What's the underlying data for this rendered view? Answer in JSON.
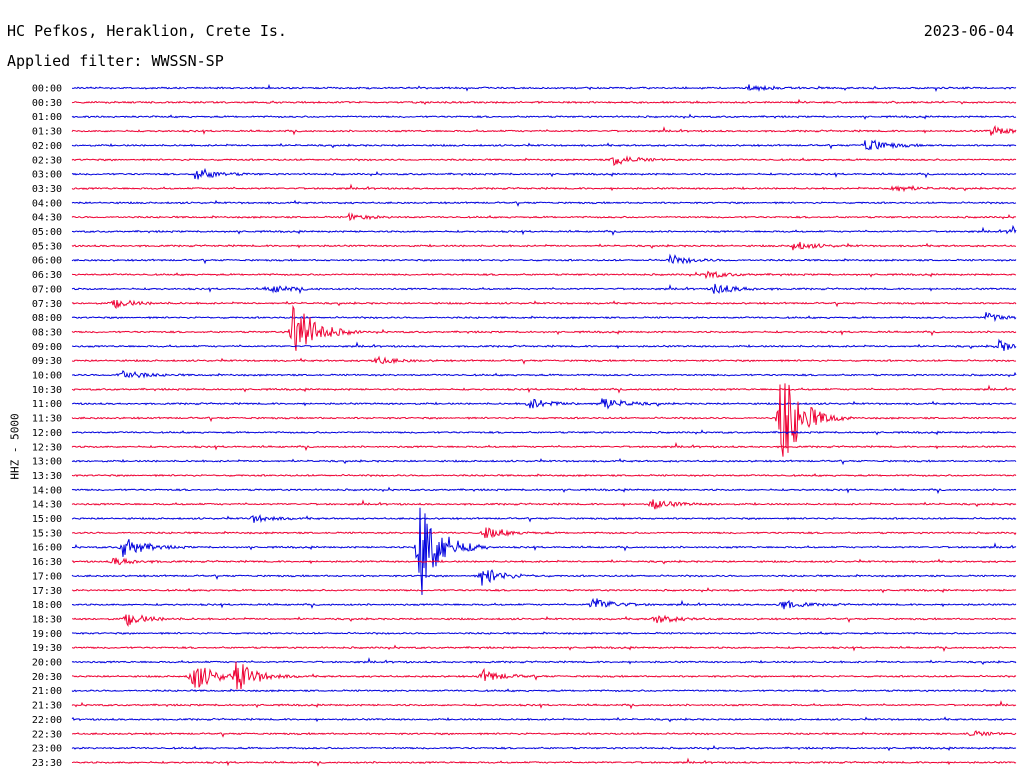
{
  "header": {
    "station": "HC Pefkos, Heraklion, Crete Is.",
    "date": "2023-06-04",
    "filter": "Applied filter: WWSSN-SP",
    "channel": "HHZ - 5000"
  },
  "colors": {
    "blue": "#0000dd",
    "red": "#ee0033",
    "background": "#ffffff"
  },
  "chart_data": {
    "type": "line",
    "title": "HC Pefkos, Heraklion, Crete Is.",
    "ylabel": "HHZ - 5000",
    "rows": [
      "00:00",
      "00:30",
      "01:00",
      "01:30",
      "02:00",
      "02:30",
      "03:00",
      "03:30",
      "04:00",
      "04:30",
      "05:00",
      "05:30",
      "06:00",
      "06:30",
      "07:00",
      "07:30",
      "08:00",
      "08:30",
      "09:00",
      "09:30",
      "10:00",
      "10:30",
      "11:00",
      "11:30",
      "12:00",
      "12:30",
      "13:00",
      "13:30",
      "14:00",
      "14:30",
      "15:00",
      "15:30",
      "16:00",
      "16:30",
      "17:00",
      "17:30",
      "18:00",
      "18:30",
      "19:00",
      "19:30",
      "20:00",
      "20:30",
      "21:00",
      "21:30",
      "22:00",
      "22:30",
      "23:00",
      "23:30"
    ],
    "row_colors": [
      "blue",
      "red"
    ],
    "events": [
      {
        "row": 0,
        "minute": 21.5,
        "amp": 3
      },
      {
        "row": 3,
        "minute": 29.2,
        "amp": 5
      },
      {
        "row": 4,
        "minute": 25.2,
        "amp": 8
      },
      {
        "row": 5,
        "minute": 17.2,
        "amp": 6
      },
      {
        "row": 6,
        "minute": 3.9,
        "amp": 7
      },
      {
        "row": 7,
        "minute": 26.0,
        "amp": 4
      },
      {
        "row": 9,
        "minute": 8.8,
        "amp": 3
      },
      {
        "row": 10,
        "minute": 29.8,
        "amp": 6
      },
      {
        "row": 11,
        "minute": 22.9,
        "amp": 5
      },
      {
        "row": 12,
        "minute": 19.0,
        "amp": 5
      },
      {
        "row": 13,
        "minute": 20.1,
        "amp": 4
      },
      {
        "row": 14,
        "minute": 6.2,
        "amp": 5
      },
      {
        "row": 14,
        "minute": 20.4,
        "amp": 6
      },
      {
        "row": 15,
        "minute": 1.3,
        "amp": 5
      },
      {
        "row": 16,
        "minute": 29.0,
        "amp": 5
      },
      {
        "row": 17,
        "minute": 7.0,
        "amp": 40
      },
      {
        "row": 18,
        "minute": 29.4,
        "amp": 6
      },
      {
        "row": 19,
        "minute": 9.6,
        "amp": 4
      },
      {
        "row": 20,
        "minute": 1.5,
        "amp": 6
      },
      {
        "row": 22,
        "minute": 14.5,
        "amp": 6
      },
      {
        "row": 22,
        "minute": 16.8,
        "amp": 7
      },
      {
        "row": 23,
        "minute": 22.5,
        "amp": 60
      },
      {
        "row": 29,
        "minute": 18.4,
        "amp": 6
      },
      {
        "row": 30,
        "minute": 5.7,
        "amp": 4
      },
      {
        "row": 31,
        "minute": 13.1,
        "amp": 6
      },
      {
        "row": 32,
        "minute": 1.6,
        "amp": 12
      },
      {
        "row": 32,
        "minute": 11.0,
        "amp": 60
      },
      {
        "row": 33,
        "minute": 1.3,
        "amp": 4
      },
      {
        "row": 34,
        "minute": 13.0,
        "amp": 10
      },
      {
        "row": 36,
        "minute": 16.5,
        "amp": 8
      },
      {
        "row": 36,
        "minute": 22.5,
        "amp": 5
      },
      {
        "row": 37,
        "minute": 1.7,
        "amp": 7
      },
      {
        "row": 37,
        "minute": 18.5,
        "amp": 5
      },
      {
        "row": 41,
        "minute": 3.8,
        "amp": 18
      },
      {
        "row": 41,
        "minute": 5.2,
        "amp": 16
      },
      {
        "row": 41,
        "minute": 13.0,
        "amp": 7
      },
      {
        "row": 45,
        "minute": 28.5,
        "amp": 3
      }
    ]
  }
}
